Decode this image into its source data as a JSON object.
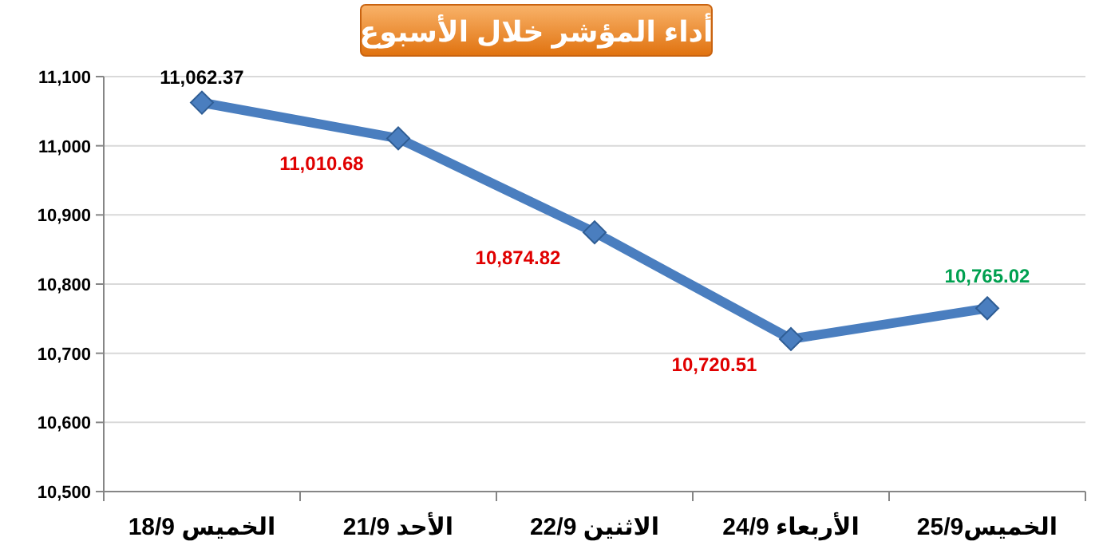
{
  "chart_data": {
    "type": "line",
    "title": "أداء المؤشر خلال الأسبوع",
    "categories": [
      "الخميس 18/9",
      "الأحد 21/9",
      "الاثنين 22/9",
      "الأربعاء 24/9",
      "الخميس25/9"
    ],
    "values": [
      11062.37,
      11010.68,
      10874.82,
      10720.51,
      10765.02
    ],
    "value_labels": [
      "11,062.37",
      "11,010.68",
      "10,874.82",
      "10,720.51",
      "10,765.02"
    ],
    "color": "#4a7ebf",
    "marker": "diamond",
    "line_style": "solid",
    "grid": "y",
    "ylim": [
      10500,
      11100
    ],
    "yticks": [
      {
        "value": 10500,
        "label": "10,500"
      },
      {
        "value": 10600,
        "label": "10,600"
      },
      {
        "value": 10700,
        "label": "10,700"
      },
      {
        "value": 10800,
        "label": "10,800"
      },
      {
        "value": 10900,
        "label": "10,900"
      },
      {
        "value": 11000,
        "label": "11,000"
      },
      {
        "value": 11100,
        "label": "11,100"
      }
    ]
  }
}
